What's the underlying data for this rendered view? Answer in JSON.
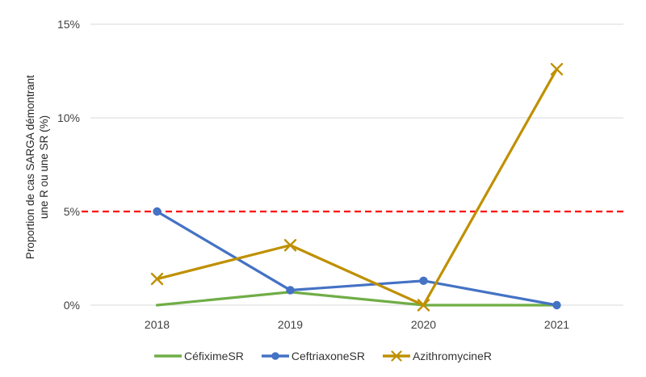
{
  "chart_data": {
    "type": "line",
    "title": "",
    "ylabel": "Proportion de cas SARGA démontrant une R ou une SR (%)",
    "ylabel_lines": [
      "Proportion de cas SARGA démontrant",
      "une R ou une SR (%)"
    ],
    "xlabel": "",
    "categories": [
      "2018",
      "2019",
      "2020",
      "2021"
    ],
    "series": [
      {
        "name": "CéfiximeSR",
        "color": "#70AD47",
        "marker": "none",
        "values": [
          0,
          0.7,
          0,
          0
        ]
      },
      {
        "name": "CeftriaxoneSR",
        "color": "#4472C4",
        "marker": "circle",
        "values": [
          5.0,
          0.8,
          1.3,
          0
        ]
      },
      {
        "name": "AzithromycineR",
        "color": "#BF9000",
        "marker": "x",
        "values": [
          1.4,
          3.2,
          0,
          12.6
        ]
      }
    ],
    "threshold_line": {
      "value": 5,
      "color": "#FF0000",
      "style": "dashed"
    },
    "y_ticks": [
      "0%",
      "5%",
      "10%",
      "15%"
    ],
    "y_tick_values": [
      0,
      5,
      10,
      15
    ],
    "ylim": [
      0,
      15
    ],
    "grid": true,
    "grid_color": "#D9D9D9",
    "axis_text_color": "#404040",
    "background_color": "#FFFFFF",
    "legend_position": "bottom"
  }
}
